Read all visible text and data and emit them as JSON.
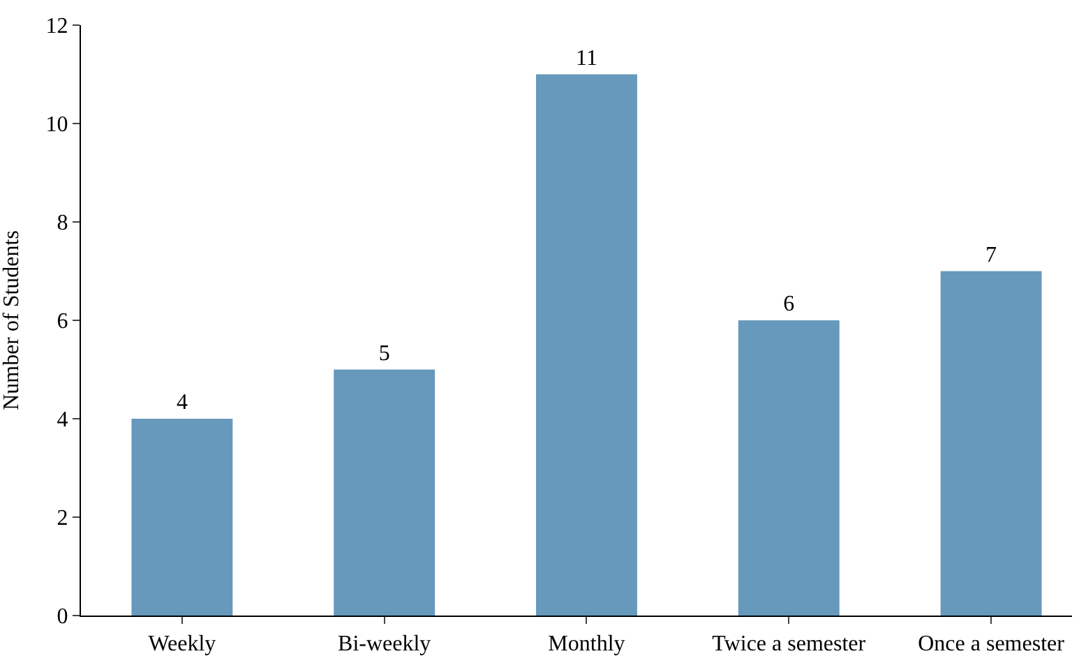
{
  "chart_data": {
    "type": "bar",
    "ylabel": "Number of Students",
    "categories": [
      "Weekly",
      "Bi-weekly",
      "Monthly",
      "Twice a semester",
      "Once a semester"
    ],
    "values": [
      4,
      5,
      11,
      6,
      7
    ],
    "color": "#6699bb",
    "ylim": [
      0,
      12
    ],
    "yticks": [
      0,
      2,
      4,
      6,
      8,
      10,
      12
    ],
    "data_labels": true
  }
}
